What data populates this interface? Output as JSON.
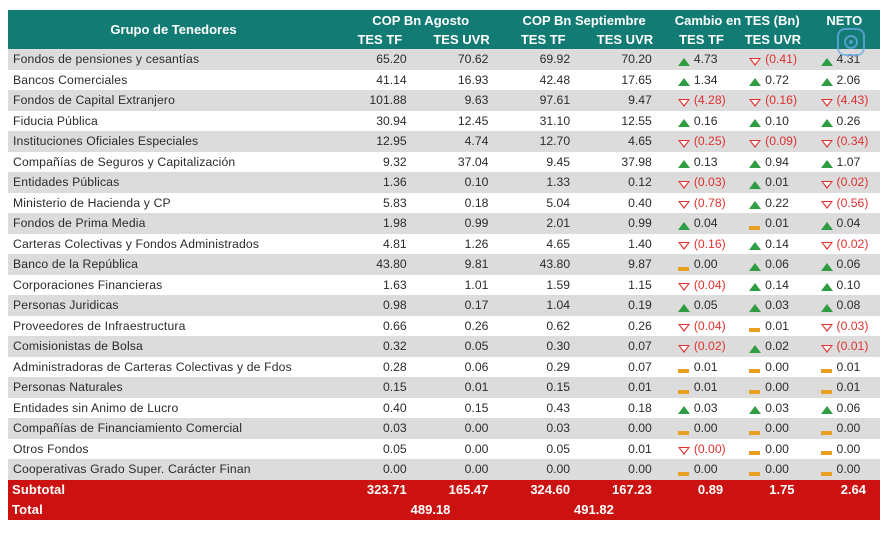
{
  "header": {
    "col_group": "Grupo de Tenedores",
    "group_agosto": "COP Bn Agosto",
    "group_septiembre": "COP Bn Septiembre",
    "group_cambio": "Cambio en TES (Bn)",
    "group_neto": "NETO",
    "sub_tf": "TES TF",
    "sub_uvr": "TES UVR"
  },
  "rows": [
    {
      "name": "Fondos de pensiones y cesantías",
      "ago_tf": "65.20",
      "ago_uvr": "70.62",
      "sep_tf": "69.92",
      "sep_uvr": "70.20",
      "d_tf": "4.73",
      "d_tf_dir": "up",
      "d_uvr": "(0.41)",
      "d_uvr_dir": "down",
      "neto": "4.31",
      "neto_dir": "up"
    },
    {
      "name": "Bancos Comerciales",
      "ago_tf": "41.14",
      "ago_uvr": "16.93",
      "sep_tf": "42.48",
      "sep_uvr": "17.65",
      "d_tf": "1.34",
      "d_tf_dir": "up",
      "d_uvr": "0.72",
      "d_uvr_dir": "up",
      "neto": "2.06",
      "neto_dir": "up"
    },
    {
      "name": "Fondos de Capital Extranjero",
      "ago_tf": "101.88",
      "ago_uvr": "9.63",
      "sep_tf": "97.61",
      "sep_uvr": "9.47",
      "d_tf": "(4.28)",
      "d_tf_dir": "down",
      "d_uvr": "(0.16)",
      "d_uvr_dir": "down",
      "neto": "(4.43)",
      "neto_dir": "down"
    },
    {
      "name": "Fiducia Pública",
      "ago_tf": "30.94",
      "ago_uvr": "12.45",
      "sep_tf": "31.10",
      "sep_uvr": "12.55",
      "d_tf": "0.16",
      "d_tf_dir": "up",
      "d_uvr": "0.10",
      "d_uvr_dir": "up",
      "neto": "0.26",
      "neto_dir": "up"
    },
    {
      "name": "Instituciones Oficiales Especiales",
      "ago_tf": "12.95",
      "ago_uvr": "4.74",
      "sep_tf": "12.70",
      "sep_uvr": "4.65",
      "d_tf": "(0.25)",
      "d_tf_dir": "down",
      "d_uvr": "(0.09)",
      "d_uvr_dir": "down",
      "neto": "(0.34)",
      "neto_dir": "down"
    },
    {
      "name": "Compañías de Seguros y Capitalización",
      "ago_tf": "9.32",
      "ago_uvr": "37.04",
      "sep_tf": "9.45",
      "sep_uvr": "37.98",
      "d_tf": "0.13",
      "d_tf_dir": "up",
      "d_uvr": "0.94",
      "d_uvr_dir": "up",
      "neto": "1.07",
      "neto_dir": "up"
    },
    {
      "name": "Entidades Públicas",
      "ago_tf": "1.36",
      "ago_uvr": "0.10",
      "sep_tf": "1.33",
      "sep_uvr": "0.12",
      "d_tf": "(0.03)",
      "d_tf_dir": "down",
      "d_uvr": "0.01",
      "d_uvr_dir": "up",
      "neto": "(0.02)",
      "neto_dir": "down"
    },
    {
      "name": "Ministerio de Hacienda y CP",
      "ago_tf": "5.83",
      "ago_uvr": "0.18",
      "sep_tf": "5.04",
      "sep_uvr": "0.40",
      "d_tf": "(0.78)",
      "d_tf_dir": "down",
      "d_uvr": "0.22",
      "d_uvr_dir": "up",
      "neto": "(0.56)",
      "neto_dir": "down"
    },
    {
      "name": "Fondos de Prima Media",
      "ago_tf": "1.98",
      "ago_uvr": "0.99",
      "sep_tf": "2.01",
      "sep_uvr": "0.99",
      "d_tf": "0.04",
      "d_tf_dir": "up",
      "d_uvr": "0.01",
      "d_uvr_dir": "flat",
      "neto": "0.04",
      "neto_dir": "up"
    },
    {
      "name": "Carteras Colectivas y Fondos Administrados",
      "ago_tf": "4.81",
      "ago_uvr": "1.26",
      "sep_tf": "4.65",
      "sep_uvr": "1.40",
      "d_tf": "(0.16)",
      "d_tf_dir": "down",
      "d_uvr": "0.14",
      "d_uvr_dir": "up",
      "neto": "(0.02)",
      "neto_dir": "down"
    },
    {
      "name": "Banco de la República",
      "ago_tf": "43.80",
      "ago_uvr": "9.81",
      "sep_tf": "43.80",
      "sep_uvr": "9.87",
      "d_tf": "0.00",
      "d_tf_dir": "flat",
      "d_uvr": "0.06",
      "d_uvr_dir": "up",
      "neto": "0.06",
      "neto_dir": "up"
    },
    {
      "name": "Corporaciones Financieras",
      "ago_tf": "1.63",
      "ago_uvr": "1.01",
      "sep_tf": "1.59",
      "sep_uvr": "1.15",
      "d_tf": "(0.04)",
      "d_tf_dir": "down",
      "d_uvr": "0.14",
      "d_uvr_dir": "up",
      "neto": "0.10",
      "neto_dir": "up"
    },
    {
      "name": "Personas Juridicas",
      "ago_tf": "0.98",
      "ago_uvr": "0.17",
      "sep_tf": "1.04",
      "sep_uvr": "0.19",
      "d_tf": "0.05",
      "d_tf_dir": "up",
      "d_uvr": "0.03",
      "d_uvr_dir": "up",
      "neto": "0.08",
      "neto_dir": "up"
    },
    {
      "name": "Proveedores de Infraestructura",
      "ago_tf": "0.66",
      "ago_uvr": "0.26",
      "sep_tf": "0.62",
      "sep_uvr": "0.26",
      "d_tf": "(0.04)",
      "d_tf_dir": "down",
      "d_uvr": "0.01",
      "d_uvr_dir": "flat",
      "neto": "(0.03)",
      "neto_dir": "down"
    },
    {
      "name": "Comisionistas de Bolsa",
      "ago_tf": "0.32",
      "ago_uvr": "0.05",
      "sep_tf": "0.30",
      "sep_uvr": "0.07",
      "d_tf": "(0.02)",
      "d_tf_dir": "down",
      "d_uvr": "0.02",
      "d_uvr_dir": "up",
      "neto": "(0.01)",
      "neto_dir": "down"
    },
    {
      "name": "Administradoras de Carteras Colectivas y de Fdos",
      "ago_tf": "0.28",
      "ago_uvr": "0.06",
      "sep_tf": "0.29",
      "sep_uvr": "0.07",
      "d_tf": "0.01",
      "d_tf_dir": "flat",
      "d_uvr": "0.00",
      "d_uvr_dir": "flat",
      "neto": "0.01",
      "neto_dir": "flat"
    },
    {
      "name": "Personas Naturales",
      "ago_tf": "0.15",
      "ago_uvr": "0.01",
      "sep_tf": "0.15",
      "sep_uvr": "0.01",
      "d_tf": "0.01",
      "d_tf_dir": "flat",
      "d_uvr": "0.00",
      "d_uvr_dir": "flat",
      "neto": "0.01",
      "neto_dir": "flat"
    },
    {
      "name": "Entidades sin Animo de Lucro",
      "ago_tf": "0.40",
      "ago_uvr": "0.15",
      "sep_tf": "0.43",
      "sep_uvr": "0.18",
      "d_tf": "0.03",
      "d_tf_dir": "up",
      "d_uvr": "0.03",
      "d_uvr_dir": "up",
      "neto": "0.06",
      "neto_dir": "up"
    },
    {
      "name": "Compañías de Financiamiento Comercial",
      "ago_tf": "0.03",
      "ago_uvr": "0.00",
      "sep_tf": "0.03",
      "sep_uvr": "0.00",
      "d_tf": "0.00",
      "d_tf_dir": "flat",
      "d_uvr": "0.00",
      "d_uvr_dir": "flat",
      "neto": "0.00",
      "neto_dir": "flat"
    },
    {
      "name": "Otros Fondos",
      "ago_tf": "0.05",
      "ago_uvr": "0.00",
      "sep_tf": "0.05",
      "sep_uvr": "0.01",
      "d_tf": "(0.00)",
      "d_tf_dir": "down",
      "d_uvr": "0.00",
      "d_uvr_dir": "flat",
      "neto": "0.00",
      "neto_dir": "flat"
    },
    {
      "name": "Cooperativas Grado Super. Carácter Finan",
      "ago_tf": "0.00",
      "ago_uvr": "0.00",
      "sep_tf": "0.00",
      "sep_uvr": "0.00",
      "d_tf": "0.00",
      "d_tf_dir": "flat",
      "d_uvr": "0.00",
      "d_uvr_dir": "flat",
      "neto": "0.00",
      "neto_dir": "flat"
    }
  ],
  "subtotal": {
    "label": "Subtotal",
    "ago_tf": "323.71",
    "ago_uvr": "165.47",
    "sep_tf": "324.60",
    "sep_uvr": "167.23",
    "d_tf": "0.89",
    "d_uvr": "1.75",
    "neto": "2.64"
  },
  "total": {
    "label": "Total",
    "agosto": "489.18",
    "septiembre": "491.82"
  },
  "colors": {
    "header_bg": "#127c74",
    "footer_bg": "#cc1111",
    "up": "#2f9d42",
    "down": "#e0312f",
    "flat": "#e8a020"
  },
  "icons": {
    "overlay": "camera-lens-icon"
  }
}
